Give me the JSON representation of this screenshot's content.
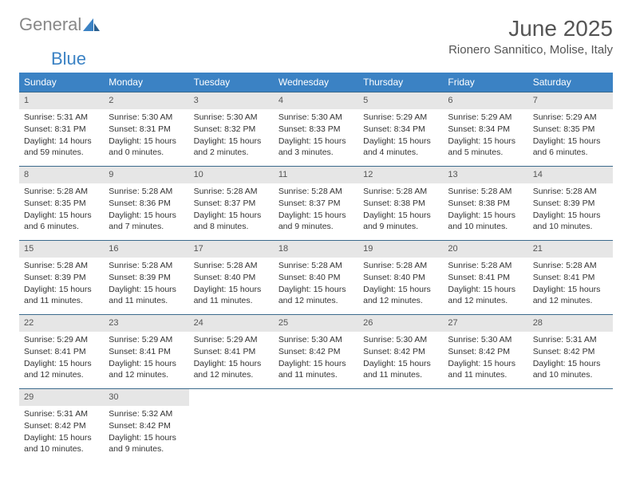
{
  "brand": {
    "word1": "General",
    "word2": "Blue"
  },
  "header": {
    "month_title": "June 2025",
    "location": "Rionero Sannitico, Molise, Italy"
  },
  "colors": {
    "header_bg": "#3b82c4",
    "row_border": "#3b6a8c",
    "daynum_bg": "#e6e6e6",
    "text_muted": "#555555",
    "brand_gray": "#888888",
    "brand_blue": "#3b82c4"
  },
  "weekdays": [
    "Sunday",
    "Monday",
    "Tuesday",
    "Wednesday",
    "Thursday",
    "Friday",
    "Saturday"
  ],
  "weeks": [
    [
      {
        "day": "1",
        "sunrise": "Sunrise: 5:31 AM",
        "sunset": "Sunset: 8:31 PM",
        "daylight": "Daylight: 14 hours and 59 minutes."
      },
      {
        "day": "2",
        "sunrise": "Sunrise: 5:30 AM",
        "sunset": "Sunset: 8:31 PM",
        "daylight": "Daylight: 15 hours and 0 minutes."
      },
      {
        "day": "3",
        "sunrise": "Sunrise: 5:30 AM",
        "sunset": "Sunset: 8:32 PM",
        "daylight": "Daylight: 15 hours and 2 minutes."
      },
      {
        "day": "4",
        "sunrise": "Sunrise: 5:30 AM",
        "sunset": "Sunset: 8:33 PM",
        "daylight": "Daylight: 15 hours and 3 minutes."
      },
      {
        "day": "5",
        "sunrise": "Sunrise: 5:29 AM",
        "sunset": "Sunset: 8:34 PM",
        "daylight": "Daylight: 15 hours and 4 minutes."
      },
      {
        "day": "6",
        "sunrise": "Sunrise: 5:29 AM",
        "sunset": "Sunset: 8:34 PM",
        "daylight": "Daylight: 15 hours and 5 minutes."
      },
      {
        "day": "7",
        "sunrise": "Sunrise: 5:29 AM",
        "sunset": "Sunset: 8:35 PM",
        "daylight": "Daylight: 15 hours and 6 minutes."
      }
    ],
    [
      {
        "day": "8",
        "sunrise": "Sunrise: 5:28 AM",
        "sunset": "Sunset: 8:35 PM",
        "daylight": "Daylight: 15 hours and 6 minutes."
      },
      {
        "day": "9",
        "sunrise": "Sunrise: 5:28 AM",
        "sunset": "Sunset: 8:36 PM",
        "daylight": "Daylight: 15 hours and 7 minutes."
      },
      {
        "day": "10",
        "sunrise": "Sunrise: 5:28 AM",
        "sunset": "Sunset: 8:37 PM",
        "daylight": "Daylight: 15 hours and 8 minutes."
      },
      {
        "day": "11",
        "sunrise": "Sunrise: 5:28 AM",
        "sunset": "Sunset: 8:37 PM",
        "daylight": "Daylight: 15 hours and 9 minutes."
      },
      {
        "day": "12",
        "sunrise": "Sunrise: 5:28 AM",
        "sunset": "Sunset: 8:38 PM",
        "daylight": "Daylight: 15 hours and 9 minutes."
      },
      {
        "day": "13",
        "sunrise": "Sunrise: 5:28 AM",
        "sunset": "Sunset: 8:38 PM",
        "daylight": "Daylight: 15 hours and 10 minutes."
      },
      {
        "day": "14",
        "sunrise": "Sunrise: 5:28 AM",
        "sunset": "Sunset: 8:39 PM",
        "daylight": "Daylight: 15 hours and 10 minutes."
      }
    ],
    [
      {
        "day": "15",
        "sunrise": "Sunrise: 5:28 AM",
        "sunset": "Sunset: 8:39 PM",
        "daylight": "Daylight: 15 hours and 11 minutes."
      },
      {
        "day": "16",
        "sunrise": "Sunrise: 5:28 AM",
        "sunset": "Sunset: 8:39 PM",
        "daylight": "Daylight: 15 hours and 11 minutes."
      },
      {
        "day": "17",
        "sunrise": "Sunrise: 5:28 AM",
        "sunset": "Sunset: 8:40 PM",
        "daylight": "Daylight: 15 hours and 11 minutes."
      },
      {
        "day": "18",
        "sunrise": "Sunrise: 5:28 AM",
        "sunset": "Sunset: 8:40 PM",
        "daylight": "Daylight: 15 hours and 12 minutes."
      },
      {
        "day": "19",
        "sunrise": "Sunrise: 5:28 AM",
        "sunset": "Sunset: 8:40 PM",
        "daylight": "Daylight: 15 hours and 12 minutes."
      },
      {
        "day": "20",
        "sunrise": "Sunrise: 5:28 AM",
        "sunset": "Sunset: 8:41 PM",
        "daylight": "Daylight: 15 hours and 12 minutes."
      },
      {
        "day": "21",
        "sunrise": "Sunrise: 5:28 AM",
        "sunset": "Sunset: 8:41 PM",
        "daylight": "Daylight: 15 hours and 12 minutes."
      }
    ],
    [
      {
        "day": "22",
        "sunrise": "Sunrise: 5:29 AM",
        "sunset": "Sunset: 8:41 PM",
        "daylight": "Daylight: 15 hours and 12 minutes."
      },
      {
        "day": "23",
        "sunrise": "Sunrise: 5:29 AM",
        "sunset": "Sunset: 8:41 PM",
        "daylight": "Daylight: 15 hours and 12 minutes."
      },
      {
        "day": "24",
        "sunrise": "Sunrise: 5:29 AM",
        "sunset": "Sunset: 8:41 PM",
        "daylight": "Daylight: 15 hours and 12 minutes."
      },
      {
        "day": "25",
        "sunrise": "Sunrise: 5:30 AM",
        "sunset": "Sunset: 8:42 PM",
        "daylight": "Daylight: 15 hours and 11 minutes."
      },
      {
        "day": "26",
        "sunrise": "Sunrise: 5:30 AM",
        "sunset": "Sunset: 8:42 PM",
        "daylight": "Daylight: 15 hours and 11 minutes."
      },
      {
        "day": "27",
        "sunrise": "Sunrise: 5:30 AM",
        "sunset": "Sunset: 8:42 PM",
        "daylight": "Daylight: 15 hours and 11 minutes."
      },
      {
        "day": "28",
        "sunrise": "Sunrise: 5:31 AM",
        "sunset": "Sunset: 8:42 PM",
        "daylight": "Daylight: 15 hours and 10 minutes."
      }
    ],
    [
      {
        "day": "29",
        "sunrise": "Sunrise: 5:31 AM",
        "sunset": "Sunset: 8:42 PM",
        "daylight": "Daylight: 15 hours and 10 minutes."
      },
      {
        "day": "30",
        "sunrise": "Sunrise: 5:32 AM",
        "sunset": "Sunset: 8:42 PM",
        "daylight": "Daylight: 15 hours and 9 minutes."
      },
      null,
      null,
      null,
      null,
      null
    ]
  ]
}
